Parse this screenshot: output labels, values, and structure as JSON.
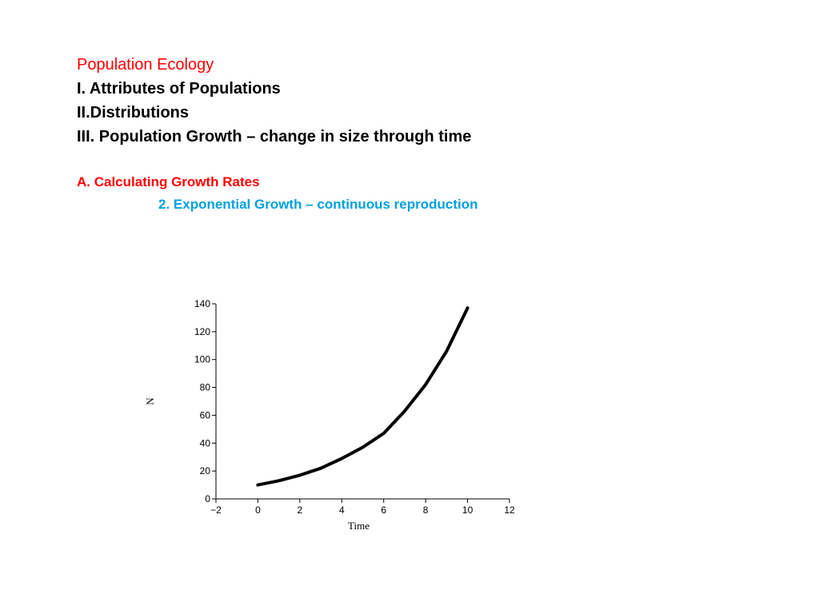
{
  "header": {
    "title": "Population Ecology",
    "items": [
      "I. Attributes of Populations",
      "II.Distributions",
      "III. Population Growth – change in size through time"
    ]
  },
  "subsection": {
    "heading": "A. Calculating Growth Rates",
    "subheading": "2. Exponential Growth – continuous reproduction"
  },
  "colors": {
    "title": "#ff0000",
    "subheading": "#00a0e0",
    "curve": "#000000"
  },
  "chart_data": {
    "type": "line",
    "xlabel": "Time",
    "ylabel": "N",
    "xlim": [
      -2,
      12
    ],
    "ylim": [
      0,
      140
    ],
    "x_ticks": [
      -2,
      0,
      2,
      4,
      6,
      8,
      10,
      12
    ],
    "y_ticks": [
      0,
      20,
      40,
      60,
      80,
      100,
      120,
      140
    ],
    "grid": false,
    "series": [
      {
        "x": [
          0,
          1,
          2,
          3,
          4,
          5,
          6,
          7,
          8,
          9,
          10
        ],
        "values": [
          10,
          13,
          17,
          22,
          29,
          37,
          47,
          63,
          82,
          106,
          137
        ]
      }
    ]
  }
}
